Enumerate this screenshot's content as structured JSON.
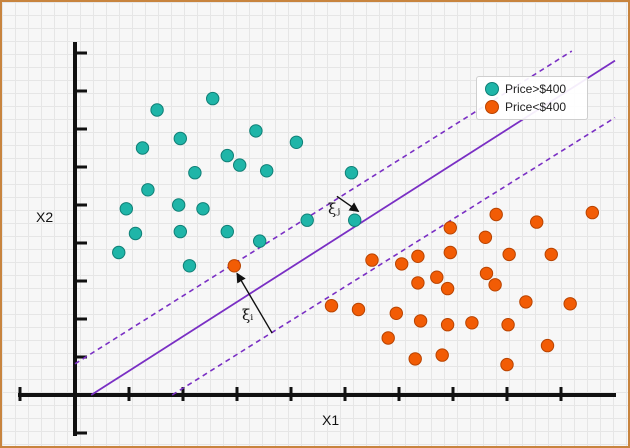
{
  "chart_data": {
    "type": "scatter",
    "xlabel": "X1",
    "ylabel": "X2",
    "xlim": [
      0,
      10
    ],
    "ylim": [
      0,
      9
    ],
    "grid": true,
    "legend_placement": "top-right",
    "series": [
      {
        "name": "Price>$400",
        "color": "#1fb5a8",
        "edge_color": "#0f7f76",
        "points": [
          [
            1.52,
            7.5
          ],
          [
            2.55,
            7.8
          ],
          [
            1.25,
            6.5
          ],
          [
            1.95,
            6.75
          ],
          [
            3.35,
            6.95
          ],
          [
            4.1,
            6.65
          ],
          [
            2.82,
            6.3
          ],
          [
            3.05,
            6.05
          ],
          [
            3.55,
            5.9
          ],
          [
            2.22,
            5.85
          ],
          [
            1.35,
            5.4
          ],
          [
            5.12,
            5.85
          ],
          [
            0.95,
            4.9
          ],
          [
            1.92,
            5.0
          ],
          [
            2.37,
            4.9
          ],
          [
            4.3,
            4.6
          ],
          [
            5.18,
            4.6
          ],
          [
            1.12,
            4.25
          ],
          [
            1.95,
            4.3
          ],
          [
            2.82,
            4.3
          ],
          [
            3.42,
            4.05
          ],
          [
            0.81,
            3.75
          ],
          [
            2.12,
            3.4
          ]
        ]
      },
      {
        "name": "Price<$400",
        "color": "#f25c05",
        "edge_color": "#b84300",
        "points": [
          [
            2.95,
            3.4
          ],
          [
            5.5,
            3.55
          ],
          [
            6.05,
            3.45
          ],
          [
            6.95,
            4.4
          ],
          [
            7.8,
            4.75
          ],
          [
            8.55,
            4.55
          ],
          [
            9.58,
            4.8
          ],
          [
            7.6,
            4.15
          ],
          [
            6.35,
            3.65
          ],
          [
            6.95,
            3.75
          ],
          [
            8.04,
            3.7
          ],
          [
            8.82,
            3.7
          ],
          [
            6.7,
            3.1
          ],
          [
            7.62,
            3.2
          ],
          [
            6.35,
            2.95
          ],
          [
            6.9,
            2.8
          ],
          [
            4.75,
            2.35
          ],
          [
            5.25,
            2.25
          ],
          [
            5.95,
            2.15
          ],
          [
            6.4,
            1.95
          ],
          [
            6.9,
            1.85
          ],
          [
            7.35,
            1.9
          ],
          [
            8.02,
            1.85
          ],
          [
            8.35,
            2.45
          ],
          [
            9.17,
            2.4
          ],
          [
            5.8,
            1.5
          ],
          [
            8.75,
            1.3
          ],
          [
            6.3,
            0.95
          ],
          [
            6.8,
            1.05
          ],
          [
            8.0,
            0.8
          ],
          [
            7.78,
            2.9
          ]
        ]
      }
    ],
    "boundary_lines": {
      "decision": [
        [
          0.3,
          0
        ],
        [
          10,
          8.8
        ]
      ],
      "margin_upper": [
        [
          0,
          0.82
        ],
        [
          9.2,
          9.05
        ]
      ],
      "margin_lower": [
        [
          1.8,
          0
        ],
        [
          10,
          7.3
        ]
      ]
    },
    "annotations": [
      {
        "text": "ξᵢ",
        "from": [
          3.65,
          1.63
        ],
        "to": [
          3.0,
          3.2
        ]
      },
      {
        "text": "ξⱼ",
        "from": [
          4.85,
          5.23
        ],
        "to": [
          5.25,
          4.83
        ]
      }
    ]
  }
}
